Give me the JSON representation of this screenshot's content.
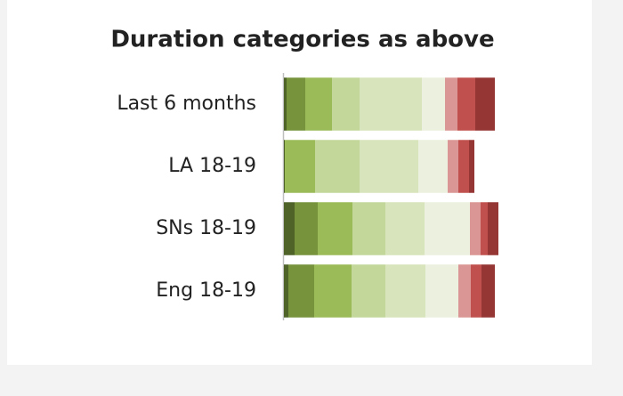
{
  "chart_data": {
    "type": "stacked-bar-horizontal",
    "title": "Duration categories as above",
    "categories": [
      "Last 6 months",
      "LA 18-19",
      "SNs 18-19",
      "Eng 18-19"
    ],
    "xlim": [
      0,
      300
    ],
    "series": [
      {
        "color": "#4f6228",
        "values": [
          3,
          1,
          12,
          5
        ]
      },
      {
        "color": "#77933c",
        "values": [
          21,
          0,
          26,
          29
        ]
      },
      {
        "color": "#9bbb59",
        "values": [
          30,
          34,
          39,
          42
        ]
      },
      {
        "color": "#c4d79b",
        "values": [
          31,
          50,
          37,
          38
        ]
      },
      {
        "color": "#d8e4bc",
        "values": [
          70,
          66,
          44,
          45
        ]
      },
      {
        "color": "#ebf1de",
        "values": [
          26,
          33,
          51,
          37
        ]
      },
      {
        "color": "#da9694",
        "values": [
          14,
          12,
          12,
          14
        ]
      },
      {
        "color": "#c0504d",
        "values": [
          20,
          12,
          8,
          12
        ]
      },
      {
        "color": "#963634",
        "values": [
          22,
          6,
          12,
          15
        ]
      }
    ]
  }
}
